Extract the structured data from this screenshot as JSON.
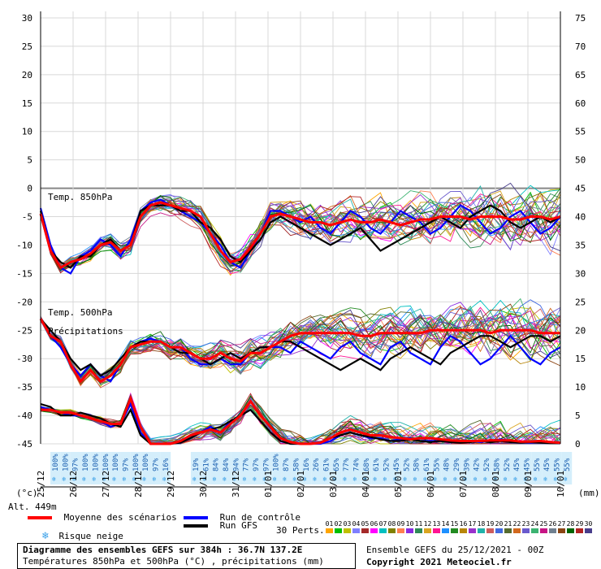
{
  "chart_data": {
    "type": "line",
    "title": "Diagramme des ensembles GEFS sur 384h : 36.7N 137.2E",
    "subtitle": "Températures 850hPa et 500hPa (°C) , précipitations (mm)",
    "y_left": {
      "ylim": [
        -45,
        30
      ],
      "ticks": [
        30,
        25,
        20,
        15,
        10,
        5,
        0,
        -5,
        -10,
        -15,
        -20,
        -25,
        -30,
        -35,
        -40,
        -45
      ]
    },
    "y_right": {
      "ylim": [
        0,
        75
      ],
      "ticks": [
        75,
        70,
        65,
        60,
        55,
        50,
        45,
        40,
        35,
        30,
        25,
        20,
        15,
        10,
        5,
        0
      ]
    },
    "x_ticks": [
      "25/12",
      "26/12",
      "27/12",
      "28/12",
      "29/12",
      "30/12",
      "31/12",
      "01/01",
      "02/01",
      "03/01",
      "04/01",
      "05/01",
      "06/01",
      "07/01",
      "08/01",
      "09/01",
      "10/01"
    ],
    "unit_left": "(°c)",
    "unit_right": "(mm)",
    "altitude": "Alt. 449m",
    "panel_labels": {
      "t850": "Temp. 850hPa",
      "t500": "Temp. 500hPa",
      "precip": "Précipitations"
    },
    "snow_risk": [
      "100%",
      "100%",
      "97%",
      "100%",
      "100%",
      "100%",
      "100%",
      "97%",
      "100%",
      "100%",
      "97%",
      "16%",
      "",
      "",
      "19%",
      "61%",
      "84%",
      "84%",
      "94%",
      "77%",
      "97%",
      "97%",
      "100%",
      "87%",
      "58%",
      "16%",
      "26%",
      "61%",
      "65%",
      "77%",
      "74%",
      "68%",
      "61%",
      "52%",
      "45%",
      "52%",
      "58%",
      "61%",
      "55%",
      "48%",
      "29%",
      "39%",
      "42%",
      "52%",
      "58%",
      "52%",
      "45%",
      "45%",
      "55%",
      "45%",
      "55%",
      "55%"
    ],
    "series": [
      {
        "name": "Moyenne des scénarios",
        "color": "#ff0000",
        "t850": [
          -4.5,
          -11,
          -14,
          -13,
          -12.5,
          -11.5,
          -10,
          -9.5,
          -11,
          -10,
          -5,
          -3,
          -2.5,
          -3,
          -3.5,
          -4,
          -5,
          -8,
          -11,
          -13,
          -12.5,
          -10.5,
          -8,
          -5,
          -4.5,
          -5,
          -5.5,
          -6,
          -6,
          -6.5,
          -6,
          -5.5,
          -6,
          -6,
          -5.5,
          -6,
          -6.5,
          -6,
          -5.5,
          -5.5,
          -5,
          -5,
          -5,
          -5.5,
          -5,
          -5,
          -5,
          -5.5,
          -5.5,
          -5,
          -5,
          -5.5,
          -5
        ],
        "t500": [
          -23,
          -26,
          -27,
          -31,
          -34,
          -32,
          -34,
          -33,
          -31,
          -28,
          -27.5,
          -27,
          -27,
          -28,
          -28,
          -29,
          -30,
          -30,
          -29,
          -30,
          -30.5,
          -29,
          -29,
          -28,
          -27,
          -26,
          -25.5,
          -25.5,
          -25.5,
          -25.5,
          -25.5,
          -25.5,
          -26,
          -26,
          -25.5,
          -25.5,
          -25.5,
          -25.5,
          -25.5,
          -25,
          -25,
          -25,
          -25,
          -25,
          -25,
          -25.5,
          -25,
          -25,
          -25,
          -25,
          -25.5,
          -25.5,
          -25.5
        ],
        "precip": [
          6,
          6,
          5.5,
          5.5,
          5,
          4.5,
          4,
          3.5,
          3.5,
          8,
          3,
          0,
          0,
          0,
          0.5,
          1.5,
          2,
          2.5,
          2,
          3.5,
          5,
          7.5,
          5,
          3,
          1,
          0.3,
          0,
          0,
          0.2,
          1,
          2,
          2.5,
          2,
          1.5,
          1.5,
          1.2,
          1,
          0.8,
          1,
          1,
          0.8,
          0.6,
          0.5,
          0.5,
          0.5,
          0.6,
          0.6,
          0.6,
          0.4,
          0.4,
          0.5,
          0.3,
          0.2
        ]
      },
      {
        "name": "Run de contrôle",
        "color": "#0000ff",
        "t850": [
          -3.5,
          -10,
          -14,
          -15,
          -12,
          -11,
          -9,
          -10,
          -12,
          -9,
          -4,
          -2.5,
          -2,
          -3,
          -4,
          -5,
          -6,
          -8,
          -10,
          -13,
          -14,
          -11,
          -8,
          -4,
          -4,
          -5,
          -6,
          -5,
          -7,
          -8,
          -6,
          -4,
          -5,
          -7,
          -8,
          -6,
          -4,
          -5,
          -6,
          -8,
          -7,
          -5,
          -3,
          -4,
          -6,
          -8,
          -7,
          -5,
          -4,
          -6,
          -8,
          -7,
          -5
        ],
        "t500": [
          -23,
          -26,
          -28,
          -31,
          -33,
          -31,
          -33,
          -34,
          -31,
          -28,
          -27,
          -26.5,
          -27,
          -28,
          -28,
          -30,
          -31,
          -31,
          -30,
          -31,
          -31,
          -29,
          -28,
          -28,
          -28,
          -29,
          -27,
          -28,
          -29,
          -30,
          -28,
          -27,
          -29,
          -30,
          -31,
          -28,
          -27,
          -29,
          -30,
          -31,
          -28,
          -26,
          -27,
          -29,
          -31,
          -30,
          -28,
          -26,
          -28,
          -30,
          -31,
          -29,
          -28
        ],
        "precip": [
          6.5,
          6,
          5.5,
          5,
          5,
          4.5,
          4,
          3,
          3.5,
          7,
          2,
          0,
          0,
          0,
          0.3,
          1,
          2,
          3,
          2,
          4,
          5,
          6,
          4,
          2,
          0.5,
          0,
          0,
          0,
          0,
          0.5,
          1.5,
          2,
          1.5,
          1,
          1,
          0.5,
          0.8,
          1,
          0.5,
          0.5,
          0.5,
          0.3,
          0.2,
          0.5,
          0.3,
          0.5,
          0.8,
          0.5,
          0.3,
          0.2,
          0.3,
          0.2,
          0.1
        ]
      },
      {
        "name": "Run GFS",
        "color": "#000000",
        "t850": [
          -4,
          -11,
          -13,
          -14,
          -12,
          -12,
          -10,
          -9,
          -11,
          -10,
          -4,
          -3,
          -3,
          -3,
          -4,
          -4,
          -6,
          -7,
          -9,
          -12,
          -13,
          -11,
          -9,
          -6,
          -5,
          -6,
          -7,
          -8,
          -9,
          -10,
          -9,
          -8,
          -7,
          -9,
          -11,
          -10,
          -9,
          -8,
          -7,
          -6,
          -5,
          -6,
          -7,
          -5,
          -4,
          -3,
          -4,
          -6,
          -7,
          -6,
          -5,
          -6,
          -5
        ],
        "t500": [
          -23,
          -25,
          -27,
          -30,
          -32,
          -31,
          -33,
          -32,
          -30,
          -28,
          -27,
          -27,
          -27,
          -28,
          -29,
          -29,
          -30,
          -31,
          -30,
          -29,
          -30,
          -29,
          -28,
          -28,
          -27,
          -27,
          -28,
          -29,
          -30,
          -31,
          -32,
          -31,
          -30,
          -31,
          -32,
          -30,
          -29,
          -28,
          -29,
          -30,
          -31,
          -29,
          -28,
          -27,
          -26,
          -26,
          -27,
          -28,
          -27,
          -26,
          -26,
          -27,
          -26
        ],
        "precip": [
          7,
          6.5,
          5,
          5,
          5.5,
          5,
          4.5,
          3.5,
          3,
          6,
          1.5,
          0,
          0,
          0,
          0.2,
          1,
          2,
          2.5,
          3,
          4,
          5,
          6,
          4,
          2,
          0.5,
          0,
          0,
          0,
          0.2,
          1,
          1.5,
          2,
          1.5,
          1.2,
          0.8,
          0.5,
          0.5,
          0.8,
          0.5,
          0.3,
          0.5,
          0.3,
          0.2,
          0.3,
          0.5,
          0.3,
          0.5,
          0.3,
          0.2,
          0.3,
          0.2,
          0.1,
          0.1
        ]
      }
    ],
    "perturbation_colors": [
      "#ffa500",
      "#00c000",
      "#c0c000",
      "#7f7fff",
      "#a52a2a",
      "#ff00ff",
      "#00c0c0",
      "#808000",
      "#ff7f50",
      "#8a2be2",
      "#2e8b57",
      "#daa520",
      "#ff1493",
      "#1e90ff",
      "#228b22",
      "#b8860b",
      "#9932cc",
      "#20b2aa",
      "#cd5c5c",
      "#4169e1",
      "#556b2f",
      "#d2691e",
      "#6a5acd",
      "#3cb371",
      "#c71585",
      "#708090",
      "#8b4513",
      "#006400",
      "#b22222",
      "#483d8b"
    ],
    "legend_position": "bottom"
  },
  "legend": {
    "mean": "Moyenne des scénarios",
    "control": "Run de contrôle",
    "gfs": "Run GFS",
    "snow": "Risque neige",
    "perts": "30 Perts.",
    "pert_numbers": [
      "01",
      "02",
      "03",
      "04",
      "05",
      "06",
      "07",
      "08",
      "09",
      "10",
      "11",
      "12",
      "13",
      "14",
      "15",
      "16",
      "17",
      "18",
      "19",
      "20",
      "21",
      "22",
      "23",
      "24",
      "25",
      "26",
      "27",
      "28",
      "29",
      "30"
    ]
  },
  "footer": {
    "title": "Diagramme des ensembles GEFS sur 384h : 36.7N 137.2E",
    "subtitle": "Températures 850hPa et 500hPa (°C) , précipitations (mm)",
    "ensemble": "Ensemble GEFS du 25/12/2021 - 00Z",
    "copyright": "Copyright 2021 Meteociel.fr"
  }
}
